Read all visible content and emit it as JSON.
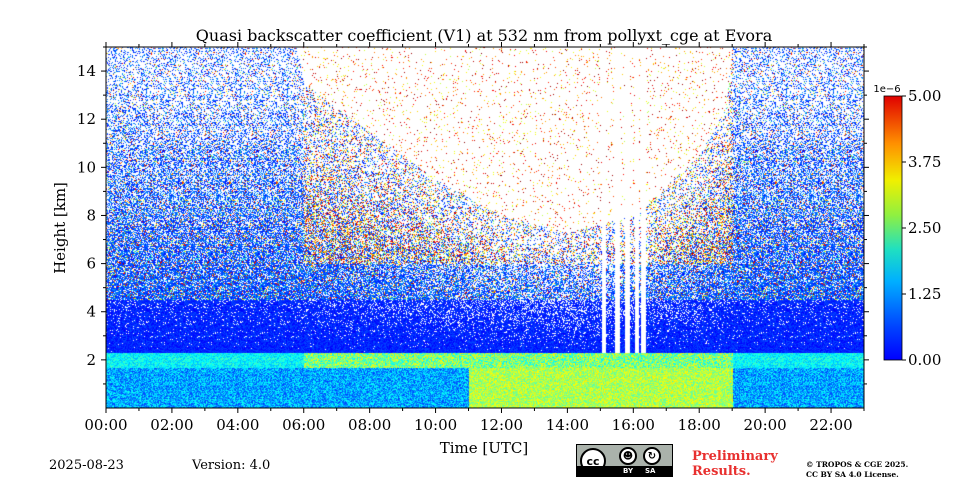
{
  "chart_data": {
    "type": "heatmap",
    "title": "Quasi backscatter coefficient (V1) at 532 nm from pollyxt_cge at Evora",
    "xlabel": "Time [UTC]",
    "ylabel": "Height [km]",
    "xlim": [
      0,
      23
    ],
    "ylim": [
      0,
      15
    ],
    "x_ticks": [
      0,
      2,
      4,
      6,
      8,
      10,
      12,
      14,
      16,
      18,
      20,
      22
    ],
    "x_tick_labels": [
      "00:00",
      "02:00",
      "04:00",
      "06:00",
      "08:00",
      "10:00",
      "12:00",
      "14:00",
      "16:00",
      "18:00",
      "20:00",
      "22:00"
    ],
    "y_ticks": [
      2,
      4,
      6,
      8,
      10,
      12,
      14
    ],
    "y_tick_labels": [
      "2",
      "4",
      "6",
      "8",
      "10",
      "12",
      "14"
    ],
    "colorbar": {
      "range": [
        0,
        5
      ],
      "exponent_label": "1e−6",
      "ticks": [
        0,
        1.25,
        2.5,
        3.75,
        5
      ],
      "tick_labels": [
        "0.00",
        "1.25",
        "2.50",
        "3.75",
        "5.00"
      ],
      "colormap": "jet"
    },
    "features": {
      "boundary_layer_top_km": 2.3,
      "signal_limit_profile": [
        {
          "time_h": 0,
          "height_km": 15
        },
        {
          "time_h": 5.8,
          "height_km": 15
        },
        {
          "time_h": 6.0,
          "height_km": 13.5
        },
        {
          "time_h": 8,
          "height_km": 11.5
        },
        {
          "time_h": 10,
          "height_km": 9.5
        },
        {
          "time_h": 12,
          "height_km": 8
        },
        {
          "time_h": 14,
          "height_km": 7.3
        },
        {
          "time_h": 16,
          "height_km": 8
        },
        {
          "time_h": 18,
          "height_km": 10.5
        },
        {
          "time_h": 18.8,
          "height_km": 12.5
        },
        {
          "time_h": 19.0,
          "height_km": 15
        },
        {
          "time_h": 23,
          "height_km": 15
        }
      ],
      "clouds_gaps": [
        {
          "time_h": 15.1
        },
        {
          "time_h": 15.5
        },
        {
          "time_h": 15.8
        },
        {
          "time_h": 16.1
        },
        {
          "time_h": 16.3
        }
      ]
    }
  },
  "footer": {
    "date": "2025-08-23",
    "version": "Version: 4.0",
    "preliminary_line1": "Preliminary",
    "preliminary_line2": "Results.",
    "copyright_line1": "© TROPOS & CGE 2025.",
    "copyright_line2": "CC BY SA 4.0 License.",
    "license_by": "BY",
    "license_sa": "SA",
    "license_cc": "cc"
  }
}
